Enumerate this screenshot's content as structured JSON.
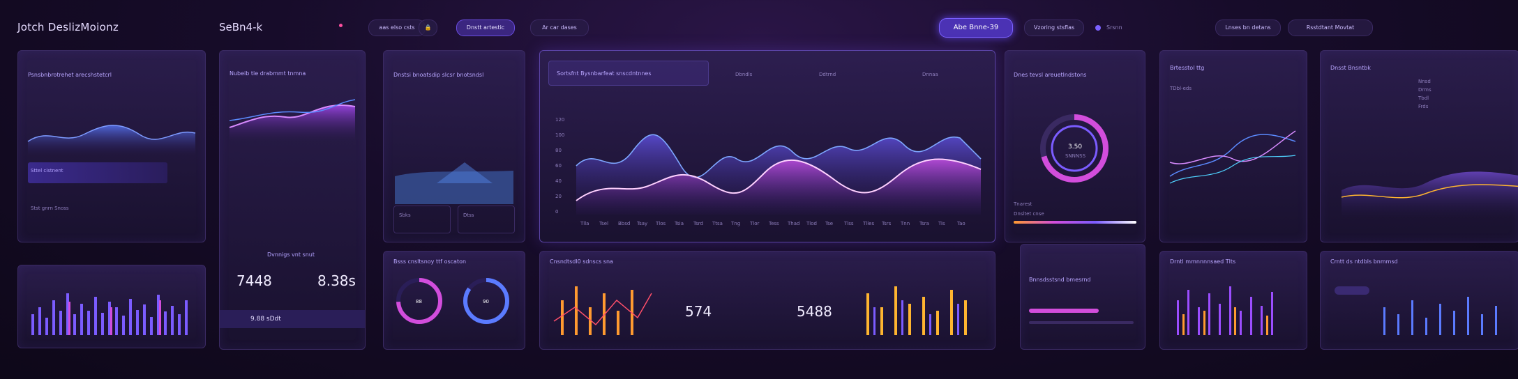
{
  "header": {
    "brand": "Jotch DeslizMoionz",
    "brand2": "SeBn4-k",
    "nav_pills": [
      "aas elso csts",
      "Dnstt artestic",
      "Ar car dases"
    ],
    "right_pills": [
      "Abe Bnne-39",
      "Vzoring stsflas"
    ],
    "right_links": [
      "Srsnn",
      "Lnses bn detans",
      "Rsstdtant Movtat"
    ]
  },
  "panels": {
    "p1": {
      "title": "Psnsbnbrotrehet arecshstetcrl",
      "big_label": "Sttel cistnent",
      "foot": "Stst gnrn Snoss"
    },
    "p2": {
      "title": "Nubeib tie drabmmt tnmna",
      "value_a": "7448",
      "value_b": "8.38s",
      "caption": "Dvnnigs vnt snut",
      "foot_value": "9.88 sDdt"
    },
    "p3": {
      "title": "Dnstsi bnoatsdip slcsr bnotsndsl",
      "cards": [
        "Sbks",
        "Dtss"
      ]
    },
    "main": {
      "title": "Sortsfnt Bysnbarfeat snscdntnnes",
      "stats": [
        "Dbndls",
        "Ddtrnd",
        "Dnnaa"
      ],
      "y_ticks": [
        "120",
        "100",
        "80",
        "60",
        "40",
        "20",
        "0"
      ],
      "x_ticks": [
        "Tlla",
        "Tsel",
        "Bbsd",
        "Tsay",
        "Tlos",
        "Tsia",
        "Tsrd",
        "Ttsa",
        "Tng",
        "Tlor",
        "Tess",
        "Thad",
        "Tlod",
        "Tse",
        "Tlss",
        "Tlles",
        "Tsrs",
        "Tnn",
        "Tsra",
        "Tis",
        "Tao"
      ]
    },
    "gauge": {
      "title": "Dnes tevsl areuetlndstons",
      "center_top": "3.50",
      "center_sub": "SNNNSS",
      "footer": "Tnarest",
      "scale": "Dnsltet cnse"
    },
    "right1": {
      "title": "Brtesstol ttg",
      "value": "TDbl-eds"
    },
    "right2": {
      "title": "Dnsst Bnsntbk",
      "list": [
        "Nnsd",
        "Drms",
        "Tbdl",
        "Frds"
      ]
    },
    "bottom_dual": {
      "title": "Bsss cnsltsnoy ttf oscaton",
      "ring_a": "88",
      "ring_b": "90"
    },
    "bottom_main": {
      "title": "Cnsndtsdl0 sdnscs sna",
      "value_a": "574",
      "value_b": "5488"
    },
    "bottom_right1": {
      "title": "Bnnsdsstsnd bmesrnd"
    },
    "bottom_right2": {
      "title": "Drntl mmnnnnsaed Tlts"
    },
    "bottom_right3": {
      "title": "Crntt ds ntdbls bnmmsd"
    }
  },
  "colors": {
    "accent": "#8a5cff",
    "magenta": "#e24fd8",
    "orange": "#ff8a2a",
    "cyan": "#4fd2ff"
  }
}
